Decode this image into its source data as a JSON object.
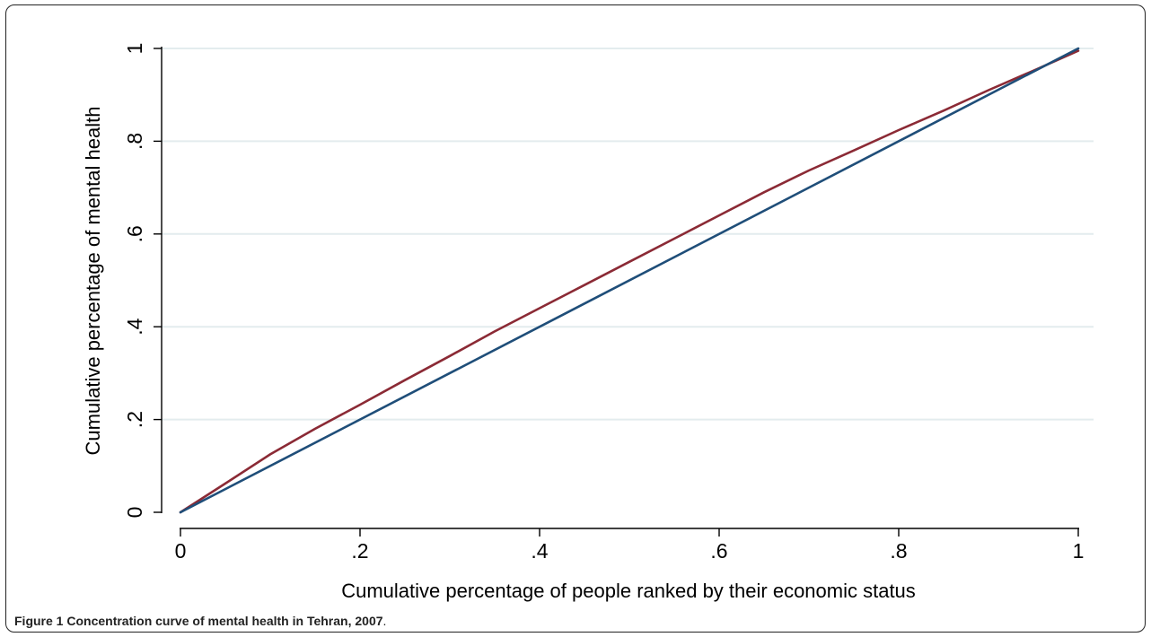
{
  "caption": {
    "label": "Figure 1",
    "text": "Concentration curve of mental health in Tehran, 2007",
    "end": "."
  },
  "chart_data": {
    "type": "line",
    "title": "",
    "xlabel": "Cumulative percentage of people ranked by their economic status",
    "ylabel": "Cumulative percentage of mental health",
    "xlim": [
      0,
      1
    ],
    "ylim": [
      0,
      1
    ],
    "x_ticks": [
      0,
      0.2,
      0.4,
      0.6,
      0.8,
      1
    ],
    "x_tick_labels": [
      "0",
      ".2",
      ".4",
      ".6",
      ".8",
      "1"
    ],
    "y_ticks": [
      0,
      0.2,
      0.4,
      0.6,
      0.8,
      1
    ],
    "y_tick_labels": [
      "0",
      ".2",
      ".4",
      ".6",
      ".8",
      "1"
    ],
    "grid": "horizontal",
    "legend": "none",
    "series": [
      {
        "color": "#8b2a35",
        "x": [
          0,
          0.05,
          0.1,
          0.15,
          0.2,
          0.25,
          0.3,
          0.35,
          0.4,
          0.45,
          0.5,
          0.55,
          0.6,
          0.65,
          0.7,
          0.75,
          0.8,
          0.85,
          0.9,
          0.95,
          1
        ],
        "y": [
          0,
          0.062,
          0.125,
          0.18,
          0.232,
          0.285,
          0.337,
          0.39,
          0.44,
          0.49,
          0.54,
          0.59,
          0.64,
          0.69,
          0.737,
          0.78,
          0.824,
          0.866,
          0.91,
          0.952,
          0.995
        ]
      },
      {
        "color": "#1f4e79",
        "x": [
          0,
          1
        ],
        "y": [
          0,
          1
        ]
      }
    ]
  }
}
